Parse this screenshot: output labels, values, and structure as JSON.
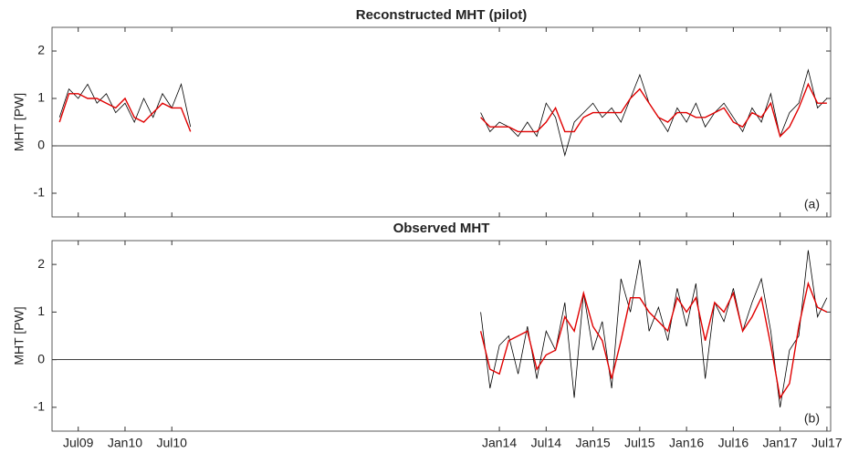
{
  "chart_data": [
    {
      "type": "line",
      "title": "Reconstructed MHT (pilot)",
      "ylabel": "MHT [PW]",
      "annotation": "(a)",
      "x": [
        2009.3,
        2009.4,
        2009.5,
        2009.6,
        2009.7,
        2009.8,
        2009.9,
        2010.0,
        2010.1,
        2010.2,
        2010.3,
        2010.4,
        2010.5,
        2010.6,
        2010.7,
        2012.2,
        2013.8,
        2013.9,
        2014.0,
        2014.1,
        2014.2,
        2014.3,
        2014.4,
        2014.5,
        2014.6,
        2014.7,
        2014.8,
        2014.9,
        2015.0,
        2015.1,
        2015.2,
        2015.3,
        2015.4,
        2015.5,
        2015.6,
        2015.7,
        2015.8,
        2015.9,
        2016.0,
        2016.1,
        2016.2,
        2016.3,
        2016.4,
        2016.5,
        2016.6,
        2016.7,
        2016.8,
        2016.9,
        2017.0,
        2017.1,
        2017.2,
        2017.3,
        2017.4,
        2017.5
      ],
      "series": [
        {
          "color": "#000000",
          "values": [
            0.6,
            1.2,
            1.0,
            1.3,
            0.9,
            1.1,
            0.7,
            0.9,
            0.5,
            1.0,
            0.6,
            1.1,
            0.8,
            1.3,
            0.4,
            null,
            0.7,
            0.3,
            0.5,
            0.4,
            0.2,
            0.5,
            0.2,
            0.9,
            0.6,
            -0.2,
            0.5,
            0.7,
            0.9,
            0.6,
            0.8,
            0.5,
            1.0,
            1.5,
            0.9,
            0.6,
            0.3,
            0.8,
            0.5,
            0.9,
            0.4,
            0.7,
            0.9,
            0.6,
            0.3,
            0.8,
            0.5,
            1.1,
            0.2,
            0.7,
            0.9,
            1.6,
            0.8,
            1.0
          ]
        },
        {
          "color": "#e00000",
          "values": [
            0.5,
            1.1,
            1.1,
            1.0,
            1.0,
            0.9,
            0.8,
            1.0,
            0.6,
            0.5,
            0.7,
            0.9,
            0.8,
            0.8,
            0.3,
            null,
            0.6,
            0.4,
            0.4,
            0.4,
            0.3,
            0.3,
            0.3,
            0.5,
            0.8,
            0.3,
            0.3,
            0.6,
            0.7,
            0.7,
            0.7,
            0.7,
            1.0,
            1.2,
            0.9,
            0.6,
            0.5,
            0.7,
            0.7,
            0.6,
            0.6,
            0.7,
            0.8,
            0.5,
            0.4,
            0.7,
            0.6,
            0.9,
            0.2,
            0.4,
            0.8,
            1.3,
            0.9,
            0.9
          ]
        }
      ],
      "xlim": [
        2009.22,
        2017.54
      ],
      "xticks": [
        2009.5,
        2010.0,
        2010.5,
        2014.0,
        2014.5,
        2015.0,
        2015.5,
        2016.0,
        2016.5,
        2017.0,
        2017.5
      ],
      "ylim": [
        -1.5,
        2.5
      ],
      "yticks": [
        -1,
        0,
        1,
        2
      ]
    },
    {
      "type": "line",
      "title": "Observed MHT",
      "ylabel": "MHT [PW]",
      "annotation": "(b)",
      "x": [
        2013.8,
        2013.9,
        2014.0,
        2014.1,
        2014.2,
        2014.3,
        2014.4,
        2014.5,
        2014.6,
        2014.7,
        2014.8,
        2014.9,
        2015.0,
        2015.1,
        2015.2,
        2015.3,
        2015.4,
        2015.5,
        2015.6,
        2015.7,
        2015.8,
        2015.9,
        2016.0,
        2016.1,
        2016.2,
        2016.3,
        2016.4,
        2016.5,
        2016.6,
        2016.7,
        2016.8,
        2016.9,
        2017.0,
        2017.1,
        2017.2,
        2017.3,
        2017.4,
        2017.5
      ],
      "series": [
        {
          "color": "#000000",
          "values": [
            1.0,
            -0.6,
            0.3,
            0.5,
            -0.3,
            0.7,
            -0.4,
            0.6,
            0.2,
            1.2,
            -0.8,
            1.4,
            0.2,
            0.8,
            -0.6,
            1.7,
            1.0,
            2.1,
            0.6,
            1.1,
            0.4,
            1.5,
            0.7,
            1.6,
            -0.4,
            1.2,
            0.8,
            1.5,
            0.6,
            1.2,
            1.7,
            0.6,
            -1.0,
            0.2,
            0.5,
            2.3,
            0.9,
            1.3
          ]
        },
        {
          "color": "#e00000",
          "values": [
            0.6,
            -0.2,
            -0.3,
            0.4,
            0.5,
            0.6,
            -0.2,
            0.1,
            0.2,
            0.9,
            0.6,
            1.4,
            0.7,
            0.4,
            -0.4,
            0.4,
            1.3,
            1.3,
            1.0,
            0.8,
            0.6,
            1.3,
            1.0,
            1.3,
            0.4,
            1.2,
            1.0,
            1.4,
            0.6,
            0.9,
            1.3,
            0.3,
            -0.8,
            -0.5,
            0.7,
            1.6,
            1.1,
            1.0
          ]
        }
      ],
      "xlim": [
        2009.22,
        2017.54
      ],
      "xticks": [
        {
          "value": 2009.5,
          "label": "Jul09"
        },
        {
          "value": 2010.0,
          "label": "Jan10"
        },
        {
          "value": 2010.5,
          "label": "Jul10"
        },
        {
          "value": 2014.0,
          "label": "Jan14"
        },
        {
          "value": 2014.5,
          "label": "Jul14"
        },
        {
          "value": 2015.0,
          "label": "Jan15"
        },
        {
          "value": 2015.5,
          "label": "Jul15"
        },
        {
          "value": 2016.0,
          "label": "Jan16"
        },
        {
          "value": 2016.5,
          "label": "Jul16"
        },
        {
          "value": 2017.0,
          "label": "Jan17"
        },
        {
          "value": 2017.5,
          "label": "Jul17"
        }
      ],
      "ylim": [
        -1.5,
        2.5
      ],
      "yticks": [
        -1,
        0,
        1,
        2
      ]
    }
  ]
}
